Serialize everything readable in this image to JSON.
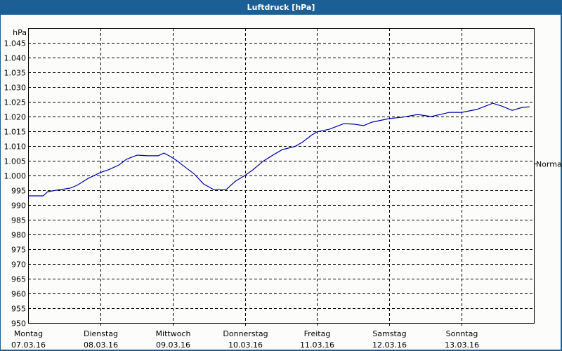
{
  "window": {
    "title": "Luftdruck [hPa]"
  },
  "colors": {
    "titlebar": "#1c5f95",
    "background": "#fcfdfb",
    "line": "#0000aa",
    "grid": "#000000"
  },
  "chart_data": {
    "type": "line",
    "title": "Luftdruck [hPa]",
    "ylabel": "hPa",
    "xlabel": "",
    "ylim": [
      950,
      1045
    ],
    "grid": true,
    "y_ticks": [
      "950",
      "955",
      "960",
      "965",
      "970",
      "975",
      "980",
      "985",
      "990",
      "995",
      "1.000",
      "1.005",
      "1.010",
      "1.015",
      "1.020",
      "1.025",
      "1.030",
      "1.035",
      "1.040",
      "1.045"
    ],
    "x_ticks": [
      {
        "day": "Montag",
        "date": "07.03.16"
      },
      {
        "day": "Dienstag",
        "date": "08.03.16"
      },
      {
        "day": "Mittwoch",
        "date": "09.03.16"
      },
      {
        "day": "Donnerstag",
        "date": "10.03.16"
      },
      {
        "day": "Freitag",
        "date": "11.03.16"
      },
      {
        "day": "Samstag",
        "date": "12.03.16"
      },
      {
        "day": "Sonntag",
        "date": "13.03.16"
      }
    ],
    "reference_line": {
      "label": "Normal",
      "value": 1004
    },
    "series": [
      {
        "name": "Luftdruck",
        "x_days": [
          0.0,
          0.21,
          0.27,
          0.39,
          0.58,
          0.68,
          0.83,
          1.0,
          1.12,
          1.26,
          1.36,
          1.51,
          1.65,
          1.8,
          1.88,
          1.95,
          2.05,
          2.17,
          2.3,
          2.43,
          2.57,
          2.74,
          2.87,
          3.0,
          3.11,
          3.25,
          3.4,
          3.52,
          3.69,
          3.79,
          3.93,
          4.0,
          4.17,
          4.37,
          4.51,
          4.64,
          4.76,
          5.0,
          5.19,
          5.39,
          5.58,
          5.83,
          6.0,
          6.21,
          6.43,
          6.55,
          6.7,
          6.84,
          6.94
        ],
        "values": [
          993.1,
          993.1,
          994.5,
          995.0,
          995.7,
          996.7,
          999.0,
          1001.0,
          1002.0,
          1003.6,
          1005.5,
          1006.9,
          1006.7,
          1006.7,
          1007.6,
          1006.7,
          1005.2,
          1002.9,
          1000.5,
          997.1,
          995.2,
          995.2,
          998.1,
          1000.0,
          1001.9,
          1004.8,
          1007.1,
          1008.8,
          1009.8,
          1011.2,
          1013.8,
          1014.8,
          1015.7,
          1017.6,
          1017.4,
          1016.9,
          1018.1,
          1019.3,
          1019.8,
          1020.7,
          1020.0,
          1021.4,
          1021.4,
          1022.4,
          1024.5,
          1023.6,
          1022.1,
          1023.1,
          1023.3
        ]
      }
    ]
  }
}
